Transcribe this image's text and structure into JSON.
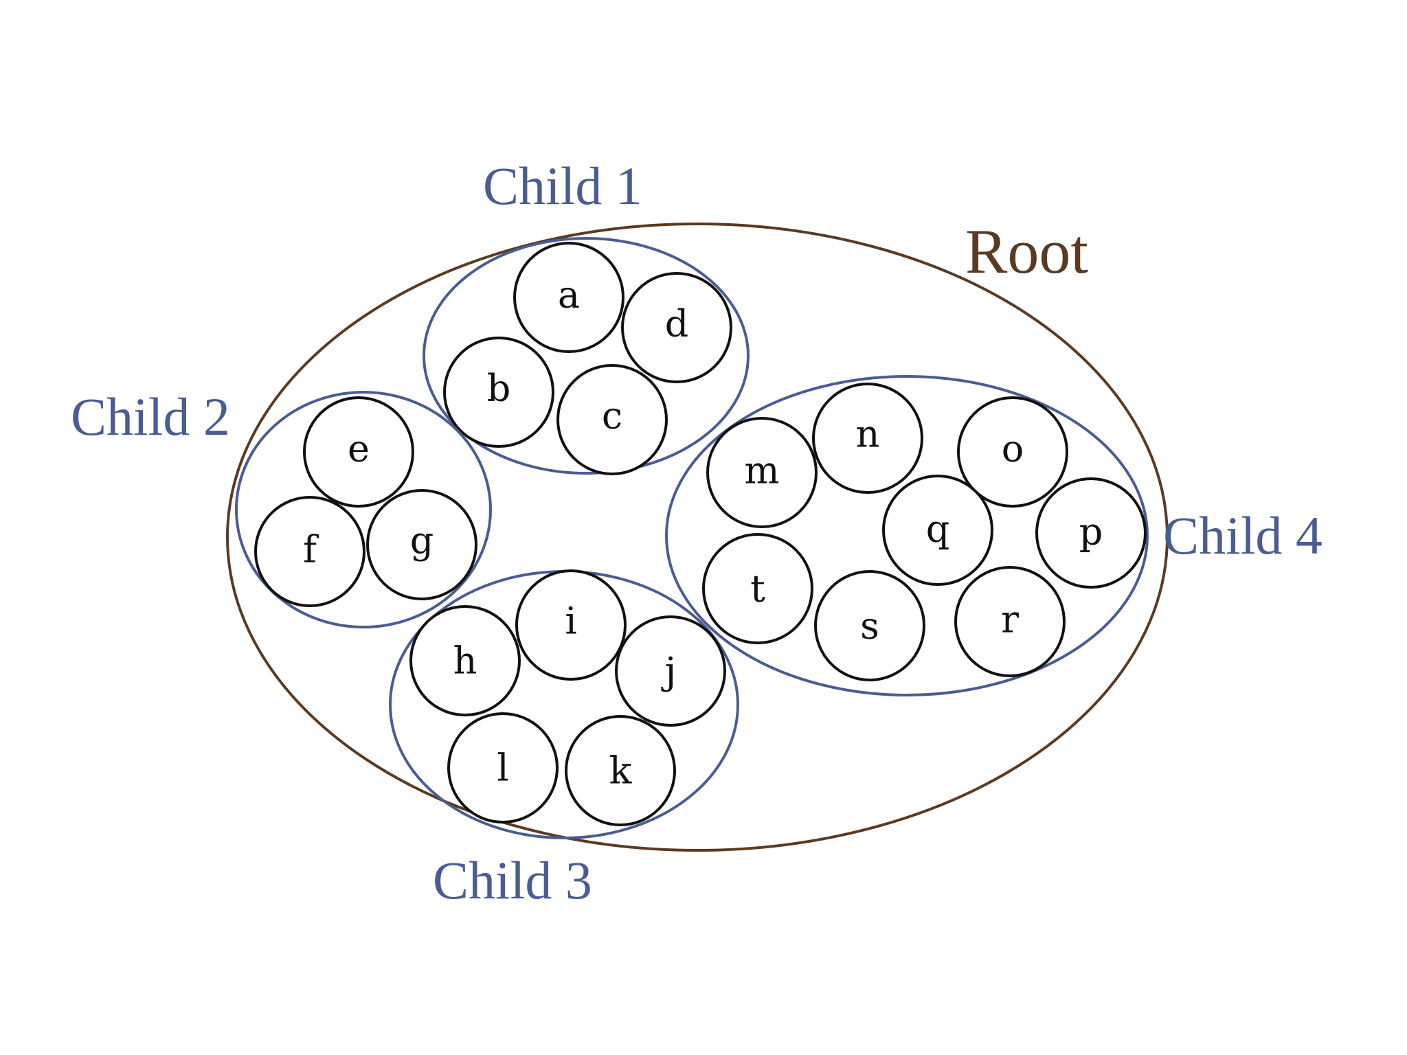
{
  "root": {
    "label": "Root",
    "color": "#5b3a22"
  },
  "children": [
    {
      "label": "Child 1",
      "color": "#4a5c93",
      "leaves": [
        "a",
        "b",
        "c",
        "d"
      ]
    },
    {
      "label": "Child 2",
      "color": "#4a5c93",
      "leaves": [
        "e",
        "f",
        "g"
      ]
    },
    {
      "label": "Child 3",
      "color": "#4a5c93",
      "leaves": [
        "h",
        "i",
        "j",
        "k",
        "l"
      ]
    },
    {
      "label": "Child 4",
      "color": "#4a5c93",
      "leaves": [
        "m",
        "n",
        "o",
        "p",
        "q",
        "r",
        "s",
        "t"
      ]
    }
  ],
  "leaf_color": "#111111"
}
